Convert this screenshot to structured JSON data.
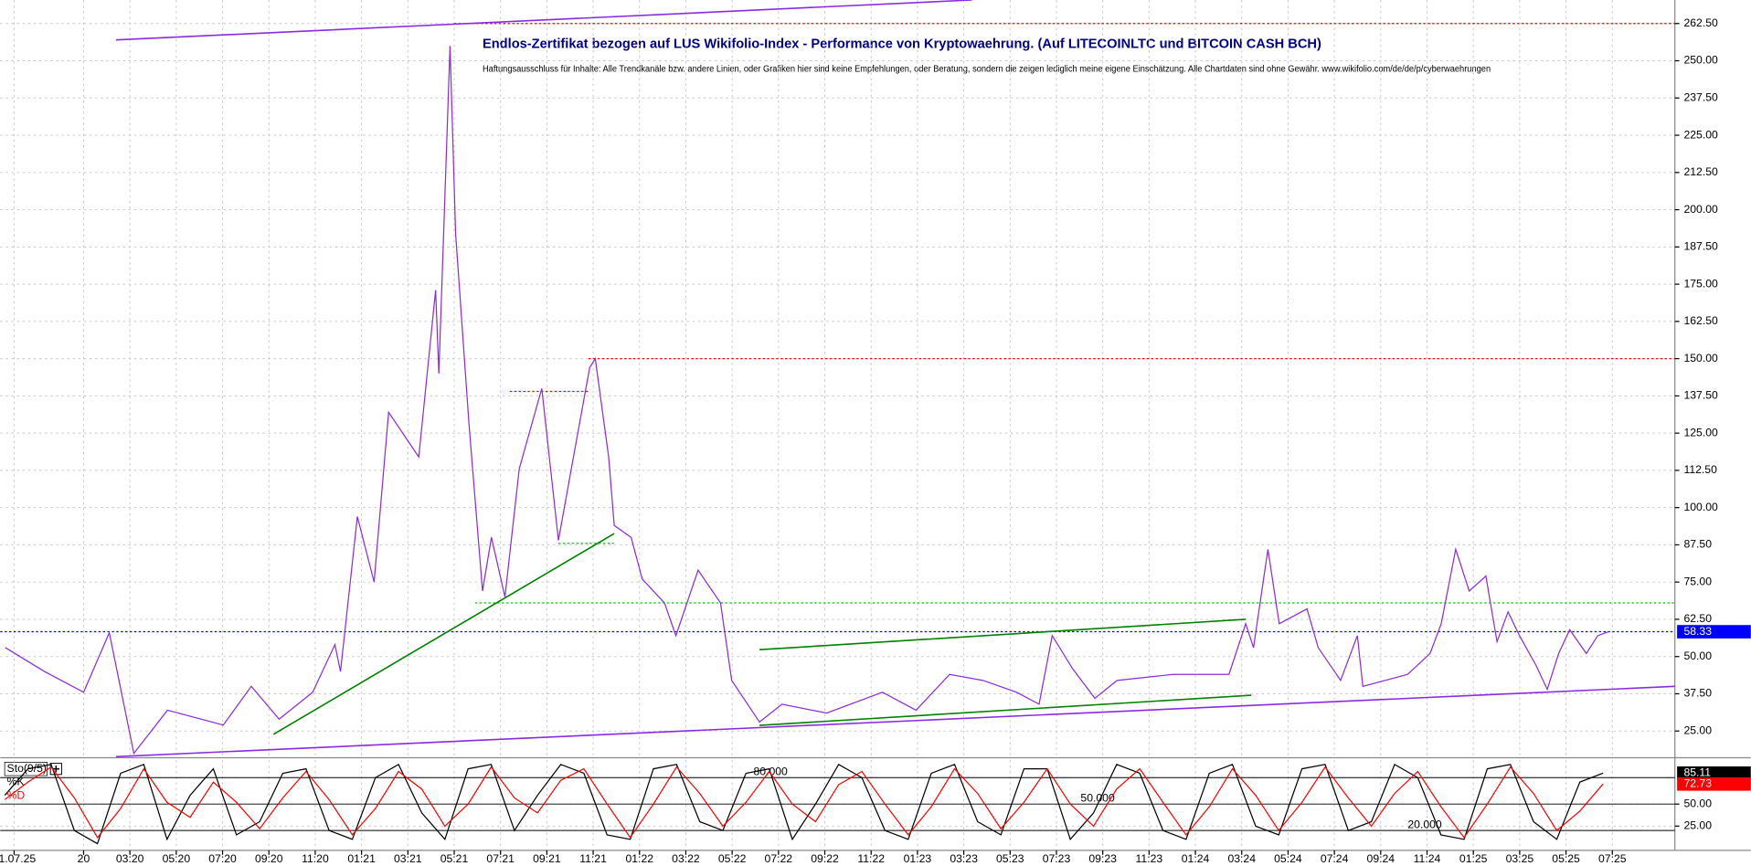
{
  "chart_data": [
    {
      "type": "line",
      "title": "Endlos-Zertifikat bezogen auf LUS Wikifolio-Index - Performance von Kryptowaehrung. (Auf LITECOINLTC und BITCOIN CASH BCH)",
      "subtitle": "Haftungsausschluss für Inhalte: Alle Trendkanäle bzw. andere Linien, oder Grafiken hier sind keine Empfehlungen, oder Beratung, sondern die zeigen lediglich meine eigene Einschätzung. Alle Chartdaten sind ohne Gewähr.  www.wikifolio.com/de/de/p/cyberwaehrungen",
      "xlim": [
        -3.6,
        68.7
      ],
      "ylim": [
        16.4,
        270.4
      ],
      "grid": true,
      "xticks": [
        {
          "value": -3,
          "label": "01.07.25"
        },
        {
          "value": 0,
          "label": "20"
        },
        {
          "value": 2,
          "label": "03:20"
        },
        {
          "value": 4,
          "label": "05:20"
        },
        {
          "value": 6,
          "label": "07:20"
        },
        {
          "value": 8,
          "label": "09:20"
        },
        {
          "value": 10,
          "label": "11:20"
        },
        {
          "value": 12,
          "label": "01:21"
        },
        {
          "value": 14,
          "label": "03:21"
        },
        {
          "value": 16,
          "label": "05:21"
        },
        {
          "value": 18,
          "label": "07:21"
        },
        {
          "value": 20,
          "label": "09:21"
        },
        {
          "value": 22,
          "label": "11:21"
        },
        {
          "value": 24,
          "label": "01:22"
        },
        {
          "value": 26,
          "label": "03:22"
        },
        {
          "value": 28,
          "label": "05:22"
        },
        {
          "value": 30,
          "label": "07:22"
        },
        {
          "value": 32,
          "label": "09:22"
        },
        {
          "value": 34,
          "label": "11:22"
        },
        {
          "value": 36,
          "label": "01:23"
        },
        {
          "value": 38,
          "label": "03:23"
        },
        {
          "value": 40,
          "label": "05:23"
        },
        {
          "value": 42,
          "label": "07:23"
        },
        {
          "value": 44,
          "label": "09:23"
        },
        {
          "value": 46,
          "label": "11:23"
        },
        {
          "value": 48,
          "label": "01:24"
        },
        {
          "value": 50,
          "label": "03:24"
        },
        {
          "value": 52,
          "label": "05:24"
        },
        {
          "value": 54,
          "label": "07:24"
        },
        {
          "value": 56,
          "label": "09:24"
        },
        {
          "value": 58,
          "label": "11:24"
        },
        {
          "value": 60,
          "label": "01:25"
        },
        {
          "value": 62,
          "label": "03:25"
        },
        {
          "value": 64,
          "label": "05:25"
        },
        {
          "value": 66,
          "label": "07:25"
        }
      ],
      "yticks": [
        {
          "value": 25,
          "label": "25.00"
        },
        {
          "value": 37.5,
          "label": "37.50"
        },
        {
          "value": 50,
          "label": "50.00"
        },
        {
          "value": 62.5,
          "label": "62.50"
        },
        {
          "value": 75,
          "label": "75.00"
        },
        {
          "value": 87.5,
          "label": "87.50"
        },
        {
          "value": 100,
          "label": "100.00"
        },
        {
          "value": 112.5,
          "label": "112.50"
        },
        {
          "value": 125,
          "label": "125.00"
        },
        {
          "value": 137.5,
          "label": "137.50"
        },
        {
          "value": 150,
          "label": "150.00"
        },
        {
          "value": 162.5,
          "label": "162.50"
        },
        {
          "value": 175,
          "label": "175.00"
        },
        {
          "value": 187.5,
          "label": "187.50"
        },
        {
          "value": 200,
          "label": "200.00"
        },
        {
          "value": 212.5,
          "label": "212.50"
        },
        {
          "value": 225,
          "label": "225.00"
        },
        {
          "value": 237.5,
          "label": "237.50"
        },
        {
          "value": 250,
          "label": "250.00"
        },
        {
          "value": 262.5,
          "label": "262.50"
        }
      ],
      "series": [
        {
          "color": "#8a2be2",
          "last_value_label": "58.33",
          "last_color": "#0000ff",
          "x": [
            -3.38,
            -1.69,
            0,
            1.11,
            2.17,
            3.62,
            6.03,
            7.24,
            8.44,
            9.89,
            10.85,
            11.09,
            11.82,
            12.54,
            13.17,
            14.47,
            15.2,
            15.34,
            15.82,
            16.06,
            16.64,
            17.22,
            17.61,
            18.19,
            18.81,
            19.78,
            20.5,
            21.22,
            21.85,
            22.09,
            22.67,
            22.91,
            23.64,
            24.12,
            25.08,
            25.57,
            26.53,
            27.5,
            27.98,
            29.18,
            30.15,
            32.08,
            34.49,
            35.94,
            37.39,
            38.83,
            40.28,
            41.25,
            41.82,
            42.69,
            43.66,
            44.62,
            47.03,
            48.0,
            49.45,
            50.17,
            50.51,
            51.13,
            51.62,
            52.82,
            53.3,
            54.27,
            54.99,
            55.23,
            56.19,
            57.16,
            58.13,
            58.61,
            59.24,
            59.82,
            60.54,
            61.02,
            61.5,
            61.99,
            62.71,
            63.19,
            63.68,
            64.16,
            64.88,
            65.37,
            65.83
          ],
          "values": [
            53,
            45,
            38,
            58,
            17.5,
            32,
            27,
            40,
            29,
            38,
            54,
            45,
            97,
            75,
            132,
            117,
            173,
            145,
            255,
            192,
            128,
            72,
            90,
            70,
            113,
            140,
            89,
            120,
            147,
            150,
            117,
            94,
            90,
            76,
            68,
            57,
            79,
            68,
            42,
            28,
            34,
            31,
            38,
            32,
            44,
            42,
            38,
            34,
            57,
            46,
            36,
            42,
            44,
            44,
            44,
            61,
            53,
            86,
            61,
            66,
            53,
            42,
            57,
            40,
            42,
            44,
            51,
            61,
            86,
            72,
            77,
            55,
            65,
            57,
            47,
            39,
            51,
            59,
            51,
            57,
            58.33
          ]
        }
      ],
      "levels": [
        {
          "value": 262.5,
          "x": [
            16,
            68.7
          ],
          "color": "#ff0000"
        },
        {
          "value": 150,
          "x": [
            21.8,
            68.7
          ],
          "color": "#ff0000"
        },
        {
          "value": 139,
          "x": [
            18.4,
            21.8
          ],
          "color": "#ff0000"
        },
        {
          "value": 88,
          "x": [
            20.5,
            22.9
          ],
          "color": "#00cc00"
        },
        {
          "value": 68,
          "x": [
            16.9,
            68.7
          ],
          "color": "#00cc00"
        },
        {
          "value": 58.33,
          "x": [
            -3.6,
            68.7
          ],
          "color": "#0000ff"
        }
      ],
      "trend_lines": [
        {
          "x": [
            1.4,
            38.35
          ],
          "y": [
            257,
            270.4
          ],
          "color": "#8a2be2"
        },
        {
          "x": [
            1.4,
            68.7
          ],
          "y": [
            16.4,
            40
          ],
          "color": "#8a2be2"
        },
        {
          "x": [
            8.2,
            22.91
          ],
          "y": [
            23.9,
            91.3
          ],
          "color": "#008000"
        },
        {
          "x": [
            29.18,
            50.17
          ],
          "y": [
            52.3,
            62.5
          ],
          "color": "#008000"
        },
        {
          "x": [
            29.18,
            50.41
          ],
          "y": [
            26.9,
            37
          ],
          "color": "#008000"
        }
      ]
    },
    {
      "type": "line",
      "legend_title": "Sto(9/5)",
      "xlim": [
        -3.6,
        68.7
      ],
      "ylim": [
        0,
        100
      ],
      "yticks": [
        {
          "value": 50,
          "label": "50.00"
        },
        {
          "value": 25,
          "label": "25.00"
        }
      ],
      "levels": [
        {
          "value": 80,
          "label": "80.000"
        },
        {
          "value": 50,
          "label": "50.000"
        },
        {
          "value": 20,
          "label": "20.000"
        }
      ],
      "series": [
        {
          "name": "%K",
          "color": "#000000",
          "last_value_label": "85.11",
          "x": [
            -3.4,
            -2.4,
            -1.4,
            -0.4,
            0.6,
            1.6,
            2.6,
            3.6,
            4.6,
            5.6,
            6.6,
            7.6,
            8.6,
            9.6,
            10.6,
            11.6,
            12.6,
            13.6,
            14.6,
            15.6,
            16.6,
            17.6,
            18.6,
            19.6,
            20.6,
            21.6,
            22.6,
            23.6,
            24.6,
            25.6,
            26.6,
            27.6,
            28.6,
            29.6,
            30.6,
            31.6,
            32.6,
            33.6,
            34.6,
            35.6,
            36.6,
            37.6,
            38.6,
            39.6,
            40.6,
            41.6,
            42.6,
            43.6,
            44.6,
            45.6,
            46.6,
            47.6,
            48.6,
            49.6,
            50.6,
            51.6,
            52.6,
            53.6,
            54.6,
            55.6,
            56.6,
            57.6,
            58.6,
            59.6,
            60.6,
            61.6,
            62.6,
            63.6,
            64.6,
            65.6
          ],
          "values": [
            60,
            90,
            95,
            20,
            5,
            85,
            95,
            10,
            60,
            90,
            15,
            30,
            85,
            90,
            20,
            10,
            80,
            95,
            40,
            10,
            90,
            95,
            20,
            60,
            95,
            85,
            15,
            10,
            90,
            95,
            30,
            20,
            85,
            90,
            10,
            50,
            95,
            80,
            20,
            10,
            85,
            95,
            30,
            15,
            90,
            90,
            10,
            40,
            95,
            85,
            20,
            10,
            85,
            95,
            25,
            15,
            90,
            95,
            20,
            30,
            95,
            80,
            15,
            10,
            90,
            95,
            30,
            10,
            75,
            85.11
          ]
        },
        {
          "name": "%D",
          "color": "#ff0000",
          "last_value_label": "72.73",
          "x": [
            -3.4,
            -2.4,
            -1.4,
            -0.4,
            0.6,
            1.6,
            2.6,
            3.6,
            4.6,
            5.6,
            6.6,
            7.6,
            8.6,
            9.6,
            10.6,
            11.6,
            12.6,
            13.6,
            14.6,
            15.6,
            16.6,
            17.6,
            18.6,
            19.6,
            20.6,
            21.6,
            22.6,
            23.6,
            24.6,
            25.6,
            26.6,
            27.6,
            28.6,
            29.6,
            30.6,
            31.6,
            32.6,
            33.6,
            34.6,
            35.6,
            36.6,
            37.6,
            38.6,
            39.6,
            40.6,
            41.6,
            42.6,
            43.6,
            44.6,
            45.6,
            46.6,
            47.6,
            48.6,
            49.6,
            50.6,
            51.6,
            52.6,
            53.6,
            54.6,
            55.6,
            56.6,
            57.6,
            58.6,
            59.6,
            60.6,
            61.6,
            62.6,
            63.6,
            64.6,
            65.6
          ],
          "values": [
            55,
            75,
            92,
            57,
            12,
            45,
            90,
            52,
            35,
            75,
            52,
            22,
            57,
            87,
            55,
            15,
            45,
            87,
            67,
            25,
            50,
            92,
            57,
            40,
            77,
            90,
            50,
            12,
            50,
            92,
            62,
            25,
            52,
            87,
            50,
            30,
            72,
            87,
            50,
            15,
            47,
            90,
            62,
            22,
            52,
            90,
            50,
            25,
            67,
            90,
            52,
            15,
            47,
            90,
            60,
            20,
            52,
            92,
            57,
            25,
            62,
            87,
            47,
            12,
            50,
            92,
            62,
            20,
            42,
            72.73
          ]
        }
      ]
    }
  ]
}
